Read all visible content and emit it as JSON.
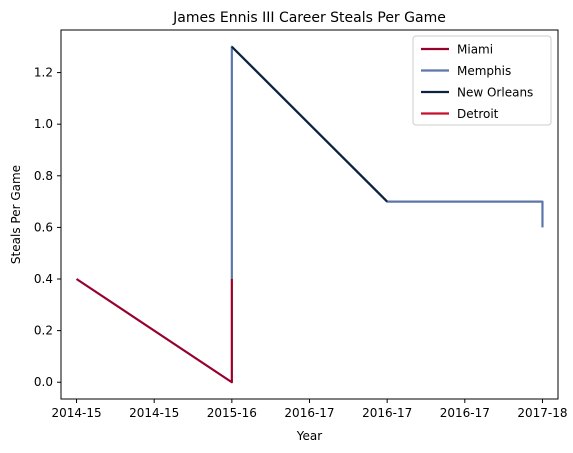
{
  "chart_data": {
    "type": "line",
    "title": "James Ennis III Career Steals Per Game",
    "xlabel": "Year",
    "ylabel": "Steals Per Game",
    "xlim": [
      -0.1,
      3.1
    ],
    "ylim": [
      -0.065,
      1.365
    ],
    "x_ticks": [
      {
        "pos": 0.0,
        "label": "2014-15"
      },
      {
        "pos": 0.5,
        "label": "2014-15"
      },
      {
        "pos": 1.0,
        "label": "2015-16"
      },
      {
        "pos": 1.5,
        "label": "2016-17"
      },
      {
        "pos": 2.0,
        "label": "2016-17"
      },
      {
        "pos": 2.5,
        "label": "2016-17"
      },
      {
        "pos": 3.0,
        "label": "2017-18"
      }
    ],
    "y_ticks": [
      0.0,
      0.2,
      0.4,
      0.6,
      0.8,
      1.0,
      1.2
    ],
    "y_tick_labels": [
      "0.0",
      "0.2",
      "0.4",
      "0.6",
      "0.8",
      "1.0",
      "1.2"
    ],
    "grid": false,
    "legend_position": "top-right",
    "series": [
      {
        "name": "Miami",
        "color": "#98002E",
        "points": [
          [
            0,
            0.4
          ],
          [
            1,
            0.0
          ],
          [
            1,
            0.4
          ]
        ]
      },
      {
        "name": "Memphis",
        "color": "#5D76A9",
        "points": [
          [
            1,
            0.4
          ],
          [
            1,
            1.3
          ],
          [
            2,
            0.7
          ],
          [
            3,
            0.7
          ],
          [
            3,
            0.6
          ]
        ]
      },
      {
        "name": "New Orleans",
        "color": "#0C2340",
        "points": [
          [
            1,
            1.3
          ],
          [
            2,
            0.7
          ]
        ]
      },
      {
        "name": "Detroit",
        "color": "#C8102E",
        "points": []
      }
    ]
  }
}
